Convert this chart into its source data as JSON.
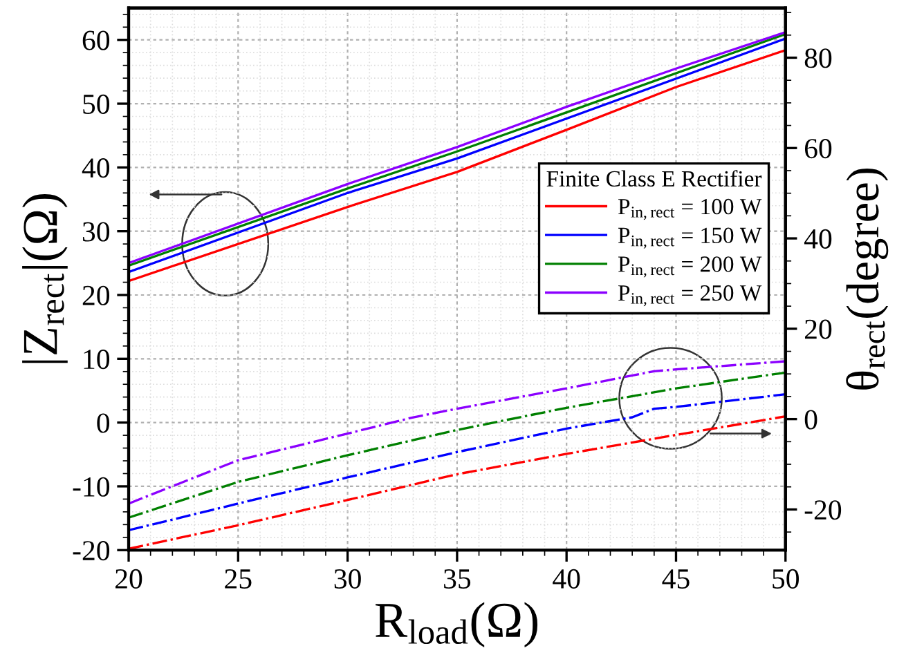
{
  "chart_data": {
    "type": "line",
    "xlabel": "R$_{load}$(Ω)",
    "ylabel": "|Z$_{rect}$|(Ω)",
    "y2label": "θ$_{rect}$(degree)",
    "legend_title": "Finite Class E Rectifier",
    "xlim": [
      20,
      50
    ],
    "xticks": [
      20,
      25,
      30,
      35,
      40,
      45,
      50
    ],
    "ylim": [
      -20,
      65
    ],
    "yticks": [
      -20,
      -10,
      0,
      10,
      20,
      30,
      40,
      50,
      60
    ],
    "y2lim": [
      -29,
      91
    ],
    "y2ticks": [
      -20,
      0,
      20,
      40,
      60,
      80
    ],
    "grid": true,
    "legend": "center right",
    "marker": "none",
    "series": [
      {
        "name": "P$_{in,rect}$ = 100 W",
        "color": "#ff0000",
        "line_style": "solid",
        "x": [
          20,
          30,
          35,
          40,
          45,
          50
        ],
        "values": [
          22.2,
          33.8,
          39.3,
          45.9,
          52.6,
          58.4
        ]
      },
      {
        "name": "P$_{in,rect}$ = 150 W",
        "color": "#0000ff",
        "line_style": "solid",
        "x": [
          20,
          30,
          35,
          50
        ],
        "values": [
          23.6,
          36.0,
          41.4,
          60.2
        ]
      },
      {
        "name": "P$_{in,rect}$ = 200 W",
        "color": "#008000",
        "line_style": "solid",
        "x": [
          20,
          30,
          35,
          50
        ],
        "values": [
          24.6,
          36.7,
          42.5,
          60.9
        ]
      },
      {
        "name": "P$_{in,rect}$ = 250 W",
        "color": "#8b00ff",
        "line_style": "solid",
        "x": [
          20,
          30,
          35,
          40,
          45,
          50
        ],
        "values": [
          25.0,
          37.4,
          43.2,
          49.5,
          55.5,
          61.2
        ]
      },
      {
        "color": "#ff0000",
        "line_style": "dashdot",
        "axis": "y2",
        "x": [
          20,
          25,
          30,
          35,
          40,
          45,
          50
        ],
        "values": [
          -28.7,
          -23.5,
          -17.9,
          -12.2,
          -7.7,
          -3.5,
          0.6
        ]
      },
      {
        "color": "#0000ff",
        "line_style": "dashdot",
        "axis": "y2",
        "x": [
          20,
          25,
          30,
          35,
          40,
          43,
          44,
          45,
          50
        ],
        "values": [
          -24.6,
          -18.7,
          -12.9,
          -7.3,
          -2.1,
          0.4,
          2.3,
          2.7,
          5.5
        ]
      },
      {
        "color": "#008000",
        "line_style": "dashdot",
        "axis": "y2",
        "x": [
          20,
          25,
          30,
          35,
          40,
          45,
          50
        ],
        "values": [
          -21.8,
          -13.9,
          -8.0,
          -2.4,
          2.5,
          6.8,
          10.3
        ]
      },
      {
        "color": "#8b00ff",
        "line_style": "dashdot",
        "axis": "y2",
        "x": [
          20,
          25,
          30,
          33,
          35,
          40,
          44,
          45,
          50
        ],
        "values": [
          -18.7,
          -9.1,
          -3.2,
          0.4,
          2.3,
          6.8,
          10.6,
          11.0,
          12.8
        ]
      }
    ]
  }
}
